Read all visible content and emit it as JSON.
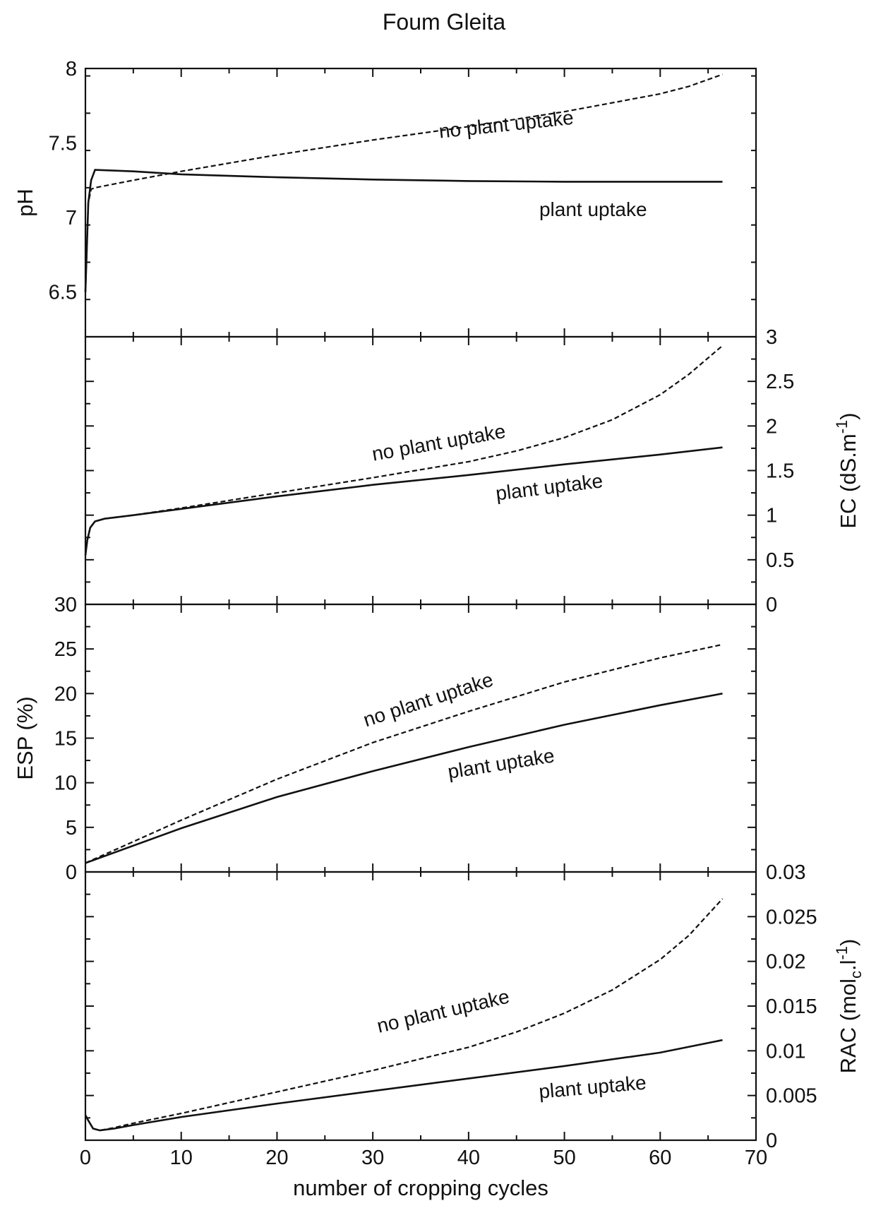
{
  "chart_data": {
    "type": "line",
    "title": "Foum Gleita",
    "xlabel": "number of cropping cycles",
    "xlim": [
      0,
      70
    ],
    "x_ticks": [
      "0",
      "10",
      "20",
      "30",
      "40",
      "50",
      "60",
      "70"
    ],
    "grid": false,
    "panels": [
      {
        "id": "ph",
        "ylabel": "pH",
        "ylabel_side": "left",
        "ylim": [
          6.2,
          8.0
        ],
        "y_ticks": [
          {
            "v": 6.5,
            "t": "6.5"
          },
          {
            "v": 7.0,
            "t": "7"
          },
          {
            "v": 7.5,
            "t": "7.5"
          },
          {
            "v": 8.0,
            "t": "8"
          }
        ],
        "series": [
          {
            "name": "plant uptake",
            "style": "solid",
            "x": [
              0,
              0.3,
              0.6,
              1.0,
              5,
              10,
              20,
              30,
              40,
              50,
              60,
              66.5
            ],
            "y": [
              6.5,
              7.1,
              7.25,
              7.32,
              7.31,
              7.29,
              7.27,
              7.255,
              7.245,
              7.24,
              7.24,
              7.24
            ]
          },
          {
            "name": "no plant uptake",
            "style": "dashed",
            "x": [
              0,
              0.3,
              0.6,
              1.0,
              5,
              10,
              20,
              30,
              40,
              50,
              55,
              60,
              63,
              66.5
            ],
            "y": [
              6.5,
              7.1,
              7.19,
              7.2,
              7.25,
              7.31,
              7.42,
              7.52,
              7.61,
              7.71,
              7.77,
              7.83,
              7.88,
              7.96
            ]
          }
        ],
        "labels": [
          {
            "text": "no plant uptake",
            "x": 44,
            "y": 7.58,
            "rotate": -6
          },
          {
            "text": "plant uptake",
            "x": 53,
            "y": 7.01,
            "rotate": 0
          }
        ]
      },
      {
        "id": "ec",
        "ylabel": "EC (dS.m",
        "ylabel_sup": "-1",
        "ylabel_close": ")",
        "ylabel_side": "right",
        "ylim": [
          0,
          3
        ],
        "y_ticks": [
          {
            "v": 0,
            "t": "0"
          },
          {
            "v": 0.5,
            "t": "0.5"
          },
          {
            "v": 1,
            "t": "1"
          },
          {
            "v": 1.5,
            "t": "1.5"
          },
          {
            "v": 2,
            "t": "2"
          },
          {
            "v": 2.5,
            "t": "2.5"
          },
          {
            "v": 3,
            "t": "3"
          }
        ],
        "series": [
          {
            "name": "plant uptake",
            "style": "solid",
            "x": [
              0,
              0.2,
              0.5,
              1.0,
              2,
              5,
              10,
              20,
              30,
              40,
              50,
              60,
              66.5
            ],
            "y": [
              0.55,
              0.72,
              0.86,
              0.93,
              0.96,
              1.0,
              1.07,
              1.21,
              1.34,
              1.45,
              1.57,
              1.68,
              1.76
            ]
          },
          {
            "name": "no plant uptake",
            "style": "dashed",
            "x": [
              0,
              0.2,
              0.5,
              1.0,
              2,
              5,
              10,
              20,
              30,
              40,
              45,
              50,
              55,
              60,
              63,
              66.5
            ],
            "y": [
              0.55,
              0.72,
              0.86,
              0.93,
              0.96,
              1.0,
              1.08,
              1.25,
              1.42,
              1.6,
              1.72,
              1.87,
              2.07,
              2.35,
              2.58,
              2.9
            ]
          }
        ],
        "labels": [
          {
            "text": "no plant uptake",
            "x": 37,
            "y": 1.74,
            "rotate": -10
          },
          {
            "text": "plant uptake",
            "x": 48.5,
            "y": 1.24,
            "rotate": -7
          }
        ]
      },
      {
        "id": "esp",
        "ylabel": "ESP (%)",
        "ylabel_side": "left",
        "ylim": [
          0,
          30
        ],
        "y_ticks": [
          {
            "v": 0,
            "t": "0"
          },
          {
            "v": 5,
            "t": "5"
          },
          {
            "v": 10,
            "t": "10"
          },
          {
            "v": 15,
            "t": "15"
          },
          {
            "v": 20,
            "t": "20"
          },
          {
            "v": 25,
            "t": "25"
          },
          {
            "v": 30,
            "t": "30"
          }
        ],
        "series": [
          {
            "name": "plant uptake",
            "style": "solid",
            "x": [
              0,
              10,
              20,
              30,
              40,
              50,
              60,
              66.5
            ],
            "y": [
              1.0,
              4.9,
              8.4,
              11.3,
              14.0,
              16.5,
              18.7,
              20.0
            ]
          },
          {
            "name": "no plant uptake",
            "style": "dashed",
            "x": [
              0,
              10,
              20,
              30,
              40,
              50,
              60,
              66.5
            ],
            "y": [
              1.0,
              5.8,
              10.4,
              14.5,
              18.0,
              21.3,
              24.0,
              25.5
            ]
          }
        ],
        "labels": [
          {
            "text": "no plant uptake",
            "x": 36,
            "y": 18.6,
            "rotate": -18
          },
          {
            "text": "plant uptake",
            "x": 43.5,
            "y": 11.4,
            "rotate": -9
          }
        ]
      },
      {
        "id": "rac",
        "ylabel": "RAC (mol",
        "ylabel_sub": "c",
        "ylabel_mid": ".l",
        "ylabel_sup": "-1",
        "ylabel_close": ")",
        "ylabel_side": "right",
        "ylim": [
          0,
          0.03
        ],
        "y_ticks": [
          {
            "v": 0,
            "t": "0"
          },
          {
            "v": 0.005,
            "t": "0.005"
          },
          {
            "v": 0.01,
            "t": "0.01"
          },
          {
            "v": 0.015,
            "t": "0.015"
          },
          {
            "v": 0.02,
            "t": "0.02"
          },
          {
            "v": 0.025,
            "t": "0.025"
          },
          {
            "v": 0.03,
            "t": "0.03"
          }
        ],
        "series": [
          {
            "name": "plant uptake",
            "style": "solid",
            "x": [
              0,
              0.3,
              0.8,
              1.5,
              3,
              5,
              10,
              20,
              30,
              40,
              50,
              60,
              66.5
            ],
            "y": [
              0.0028,
              0.0022,
              0.0013,
              0.0011,
              0.0013,
              0.0017,
              0.0026,
              0.0041,
              0.0055,
              0.0069,
              0.0083,
              0.0098,
              0.0112
            ]
          },
          {
            "name": "no plant uptake",
            "style": "dashed",
            "x": [
              0,
              0.3,
              0.8,
              1.5,
              3,
              5,
              10,
              20,
              30,
              40,
              45,
              50,
              55,
              60,
              63,
              66.5
            ],
            "y": [
              0.0028,
              0.0022,
              0.0013,
              0.0011,
              0.0014,
              0.0019,
              0.003,
              0.0054,
              0.0078,
              0.0104,
              0.0121,
              0.0142,
              0.0168,
              0.0202,
              0.0229,
              0.027
            ]
          }
        ],
        "labels": [
          {
            "text": "no plant uptake",
            "x": 37.5,
            "y": 0.0137,
            "rotate": -13
          },
          {
            "text": "plant uptake",
            "x": 53,
            "y": 0.0052,
            "rotate": -5
          }
        ]
      }
    ]
  }
}
